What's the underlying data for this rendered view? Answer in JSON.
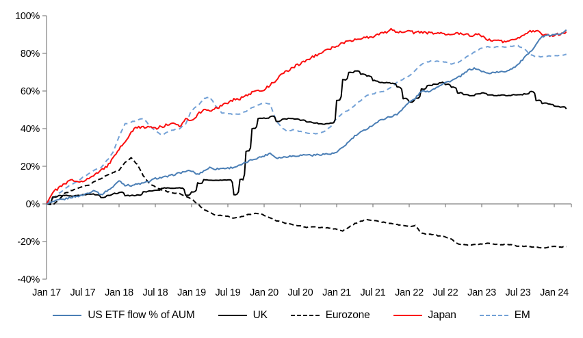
{
  "chart_data": {
    "type": "line",
    "title": "",
    "xlabel": "",
    "ylabel": "",
    "grid": false,
    "legend_position": "bottom-center",
    "axis_color": "#808080",
    "ylim": [
      -40,
      100
    ],
    "y_tick_values": [
      100,
      80,
      60,
      40,
      20,
      0,
      -20,
      -40
    ],
    "y_tick_labels": [
      "100%",
      "80%",
      "60%",
      "40%",
      "20%",
      "0%",
      "-20%",
      "-40%"
    ],
    "x_tick_labels": [
      "Jan 17",
      "Jul 17",
      "Jan 18",
      "Jul 18",
      "Jan 19",
      "Jul 19",
      "Jan 20",
      "Jul 20",
      "Jan 21",
      "Jul 21",
      "Jan 22",
      "Jul 22",
      "Jan 23",
      "Jul 23",
      "Jan 24"
    ],
    "x_unit": "months, Jan 2017 - Mar 2024, monthly samples",
    "series": [
      {
        "name": "US ETF flow % of AUM",
        "color": "#4a7eb5",
        "style": "solid",
        "monthly_values": [
          0,
          1,
          2,
          2.5,
          3.5,
          4,
          4.7,
          6,
          7.3,
          4.7,
          7,
          9,
          12.5,
          10,
          9.8,
          10.5,
          11,
          12,
          13.5,
          14,
          14.5,
          15.5,
          16.4,
          17.3,
          17.5,
          15.6,
          17.5,
          19.3,
          18.5,
          18.9,
          19,
          19.5,
          20.4,
          22,
          23.5,
          24.5,
          25.5,
          27,
          24.5,
          24.7,
          25.3,
          25.5,
          25.8,
          26.2,
          25.8,
          26.2,
          26.5,
          26.5,
          27.3,
          30,
          33,
          36,
          38,
          40,
          42,
          44,
          45.5,
          46.5,
          47.5,
          51,
          54,
          56,
          60,
          59.5,
          61,
          63,
          64.5,
          65.5,
          67,
          69,
          71.5,
          72,
          70.5,
          69.3,
          70,
          70,
          70.5,
          72,
          74,
          77.5,
          80.5,
          85,
          89,
          89.5,
          89.8,
          90.5,
          92.5
        ]
      },
      {
        "name": "UK",
        "color": "#000000",
        "style": "solid",
        "monthly_values": [
          0,
          3.6,
          4.4,
          4.5,
          4.2,
          4.5,
          5,
          5.2,
          4.8,
          3.5,
          4.5,
          5.5,
          6.2,
          4.4,
          4.5,
          4.7,
          6.5,
          7,
          7.3,
          8.4,
          8.4,
          8.4,
          8.4,
          4.7,
          6.5,
          11,
          12.7,
          12.7,
          12.5,
          12.7,
          12.7,
          5,
          13,
          28,
          40,
          45.5,
          45.5,
          46.5,
          44,
          45,
          45.5,
          45,
          44.5,
          43.5,
          43,
          42.5,
          42.5,
          43,
          55,
          66,
          69.8,
          70.5,
          69,
          68,
          65.5,
          64.5,
          64.5,
          64,
          62,
          56,
          54.2,
          56,
          61,
          63,
          63.5,
          64.5,
          63.5,
          62,
          59,
          58,
          57.5,
          58.5,
          58.9,
          58,
          57.5,
          57.8,
          57.5,
          58,
          58,
          58.5,
          59.6,
          55,
          53.5,
          53,
          52,
          51.5,
          50.5
        ]
      },
      {
        "name": "Eurozone",
        "color": "#000000",
        "style": "dashed",
        "monthly_values": [
          0,
          -0.5,
          2,
          5.5,
          7,
          8,
          9.1,
          10,
          12,
          13.5,
          15.3,
          16.5,
          18,
          22,
          24.5,
          21,
          15,
          11,
          9.1,
          7.5,
          6.5,
          5.8,
          5.5,
          4,
          2.5,
          0,
          -3,
          -4.5,
          -6,
          -6.3,
          -6.5,
          -7.6,
          -7,
          -6,
          -5.3,
          -5,
          -6,
          -7.5,
          -9,
          -9.8,
          -10.5,
          -11.3,
          -11.6,
          -12.7,
          -12,
          -12.4,
          -12.7,
          -13,
          -13.3,
          -14.5,
          -12.5,
          -10.5,
          -9.1,
          -8.4,
          -8.7,
          -9.3,
          -10,
          -10.5,
          -11,
          -11.5,
          -12,
          -11.5,
          -15.6,
          -16,
          -16.5,
          -17,
          -17.5,
          -18.8,
          -21.2,
          -21.5,
          -21.8,
          -21.5,
          -21.3,
          -21,
          -21.5,
          -21.8,
          -21.5,
          -21.8,
          -22.5,
          -22.5,
          -22.7,
          -23,
          -23.6,
          -22.9,
          -22.5,
          -23,
          -22.7
        ]
      },
      {
        "name": "Japan",
        "color": "#fb0e0e",
        "style": "solid",
        "monthly_values": [
          0,
          6,
          8.5,
          10.5,
          12.5,
          12,
          12.4,
          13.5,
          15.3,
          18,
          20,
          24,
          29,
          33,
          38,
          41,
          40.5,
          41.5,
          40,
          41,
          42,
          42.5,
          41,
          45.5,
          44.5,
          47.5,
          50,
          49.5,
          51,
          52,
          54,
          55.5,
          56,
          57.5,
          59,
          60,
          61,
          63,
          66,
          69,
          71,
          73,
          74.5,
          76.5,
          78,
          79.5,
          81,
          82.5,
          84,
          85.5,
          86.5,
          87.5,
          88,
          88.5,
          89,
          90,
          91,
          93,
          91.5,
          91,
          91.5,
          91,
          91.5,
          91,
          90.5,
          91,
          90.5,
          90,
          90.5,
          90,
          89.5,
          90,
          89.5,
          87.5,
          87,
          86.5,
          86,
          87,
          88.5,
          90,
          91.5,
          92,
          90,
          89.5,
          89.5,
          90.5,
          91.5
        ]
      },
      {
        "name": "EM",
        "color": "#73a1d6",
        "style": "dashed",
        "monthly_values": [
          0,
          3,
          5.5,
          8,
          10,
          12,
          14,
          16,
          18,
          19.3,
          23,
          27.3,
          35.6,
          42.5,
          43.5,
          44.4,
          45.5,
          41.8,
          38.9,
          36.4,
          38.2,
          39.3,
          40,
          42.5,
          49.8,
          52,
          56,
          57,
          52,
          48.5,
          48,
          47.5,
          48,
          49,
          51,
          52.5,
          53.5,
          53,
          44,
          40,
          38.5,
          39.5,
          38.5,
          37.5,
          37.2,
          37.5,
          38.5,
          41,
          45.5,
          48,
          50,
          52.5,
          55,
          57.5,
          58.5,
          59.5,
          60,
          62,
          64.4,
          66.5,
          68,
          71,
          74,
          75.5,
          76,
          75.5,
          75.6,
          74.5,
          74.8,
          77,
          79,
          81,
          83,
          83.6,
          83.2,
          83.6,
          83.4,
          83.8,
          84,
          82.5,
          79.5,
          78,
          78.3,
          78.5,
          78.6,
          79,
          79.5
        ]
      }
    ]
  }
}
